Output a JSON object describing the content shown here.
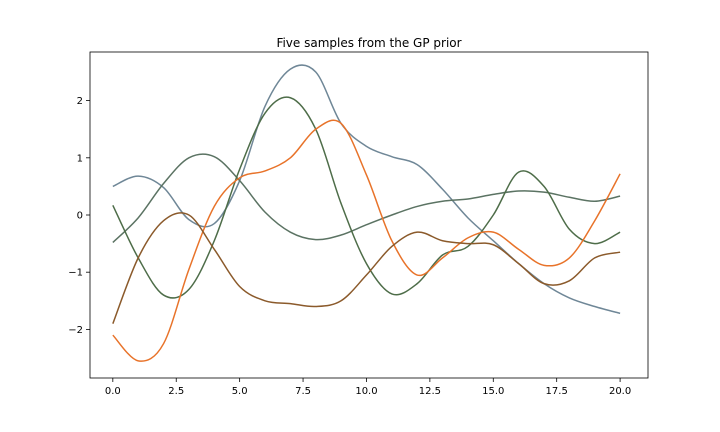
{
  "chart_data": {
    "type": "line",
    "title": "Five samples from the GP prior",
    "xlabel": "",
    "ylabel": "",
    "xlim": [
      -0.9,
      21.1
    ],
    "ylim": [
      -2.85,
      2.85
    ],
    "x_ticks": [
      0.0,
      2.5,
      5.0,
      7.5,
      10.0,
      12.5,
      15.0,
      17.5,
      20.0
    ],
    "x_tick_labels": [
      "0.0",
      "2.5",
      "5.0",
      "7.5",
      "10.0",
      "12.5",
      "15.0",
      "17.5",
      "20.0"
    ],
    "y_ticks": [
      -2,
      -1,
      0,
      1,
      2
    ],
    "y_tick_labels": [
      "−2",
      "−1",
      "0",
      "1",
      "2"
    ],
    "grid": false,
    "legend": "none",
    "x": [
      0,
      1,
      2,
      3,
      4,
      5,
      6,
      7,
      8,
      9,
      10,
      11,
      12,
      13,
      14,
      15,
      16,
      17,
      18,
      19,
      20
    ],
    "series": [
      {
        "color": "#6f8797",
        "values": [
          0.5,
          0.68,
          0.48,
          -0.08,
          -0.15,
          0.6,
          1.9,
          2.55,
          2.5,
          1.6,
          1.2,
          1.02,
          0.88,
          0.45,
          -0.05,
          -0.45,
          -0.85,
          -1.2,
          -1.45,
          -1.6,
          -1.72
        ]
      },
      {
        "color": "#5b7363",
        "values": [
          -0.48,
          -0.05,
          0.55,
          1.0,
          1.02,
          0.6,
          0.05,
          -0.3,
          -0.43,
          -0.35,
          -0.17,
          0.0,
          0.15,
          0.24,
          0.28,
          0.36,
          0.42,
          0.4,
          0.31,
          0.24,
          0.33
        ]
      },
      {
        "color": "#4e6d49",
        "values": [
          0.17,
          -0.75,
          -1.4,
          -1.3,
          -0.45,
          0.8,
          1.78,
          2.05,
          1.5,
          0.2,
          -0.85,
          -1.38,
          -1.2,
          -0.7,
          -0.55,
          0.0,
          0.75,
          0.5,
          -0.25,
          -0.5,
          -0.3
        ]
      },
      {
        "color": "#e8732a",
        "values": [
          -2.1,
          -2.55,
          -2.25,
          -0.95,
          0.15,
          0.65,
          0.77,
          1.0,
          1.5,
          1.6,
          0.7,
          -0.45,
          -1.05,
          -0.75,
          -0.4,
          -0.3,
          -0.6,
          -0.88,
          -0.75,
          -0.1,
          0.72
        ]
      },
      {
        "color": "#8b5a2b",
        "values": [
          -1.9,
          -0.75,
          -0.1,
          0.0,
          -0.6,
          -1.25,
          -1.5,
          -1.55,
          -1.6,
          -1.5,
          -1.05,
          -0.55,
          -0.3,
          -0.45,
          -0.5,
          -0.52,
          -0.85,
          -1.2,
          -1.15,
          -0.75,
          -0.65
        ]
      }
    ]
  }
}
